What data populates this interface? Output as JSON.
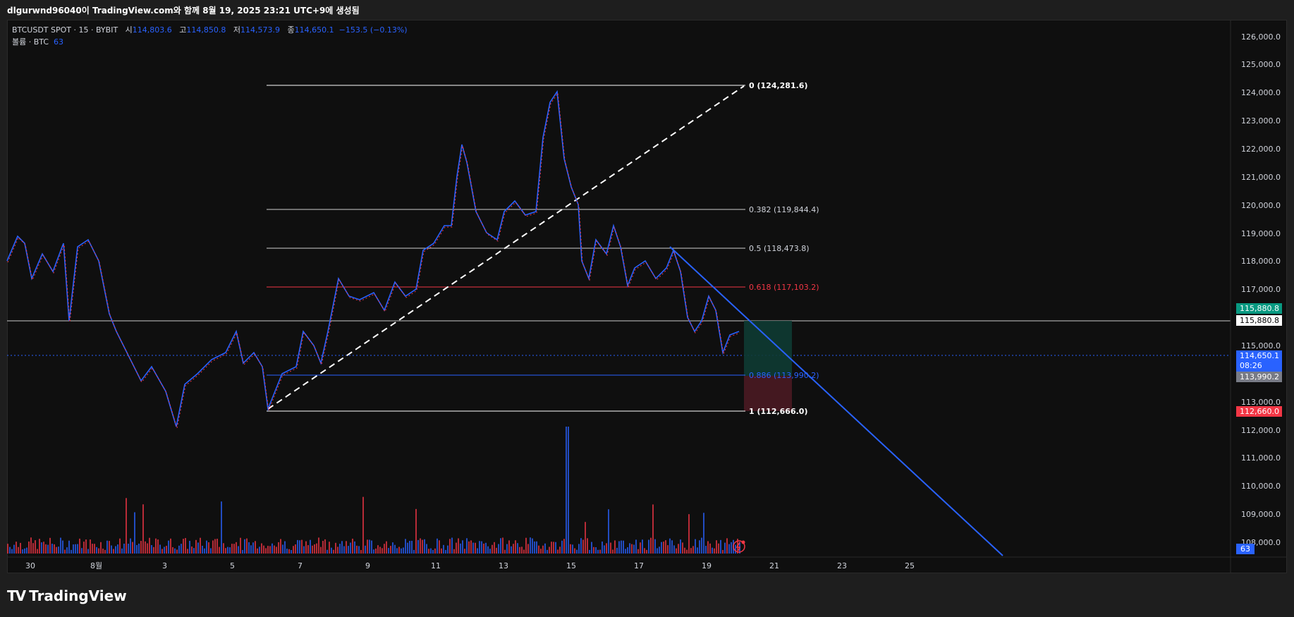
{
  "header": {
    "caption": "dlgurwnd96040이 TradingView.com와 함께 8월 19, 2025 23:21 UTC+9에 생성됨"
  },
  "legend": {
    "symbol": "BTCUSDT SPOT · 15 · BYBIT",
    "open_label": "시",
    "open": "114,803.6",
    "high_label": "고",
    "high": "114,850.8",
    "low_label": "저",
    "low": "114,573.9",
    "close_label": "종",
    "close": "114,650.1",
    "change": "−153.5 (−0.13%)",
    "volume_label": "볼륨 · BTC",
    "volume_value": "63"
  },
  "price_axis": {
    "ticks": [
      "126,000.0",
      "125,000.0",
      "124,000.0",
      "123,000.0",
      "122,000.0",
      "121,000.0",
      "120,000.0",
      "119,000.0",
      "118,000.0",
      "117,000.0",
      "115,000.0",
      "113,000.0",
      "112,000.0",
      "111,000.0",
      "110,000.0",
      "109,000.0",
      "108,000.0"
    ],
    "labels": {
      "target_green": "115,880.8",
      "target_white": "115,880.8",
      "current_price": "114,650.1",
      "countdown": "08:26",
      "entry": "113,990.2",
      "stop": "112,660.0",
      "volume": "63"
    }
  },
  "date_axis": {
    "ticks": [
      "30",
      "8월",
      "3",
      "5",
      "7",
      "9",
      "11",
      "13",
      "15",
      "17",
      "19",
      "21",
      "23",
      "25"
    ]
  },
  "fibonacci": [
    {
      "level": "0 (124,281.6)",
      "color": "#ffffff",
      "bold": true
    },
    {
      "level": "0.382 (119,844.4)",
      "color": "#d1d4dc",
      "bold": false
    },
    {
      "level": "0.5 (118,473.8)",
      "color": "#d1d4dc",
      "bold": false
    },
    {
      "level": "0.618 (117,103.2)",
      "color": "#f23645",
      "bold": false
    },
    {
      "level": "0.886 (113,990.2)",
      "color": "#2962ff",
      "bold": false
    },
    {
      "level": "1 (112,666.0)",
      "color": "#ffffff",
      "bold": true
    }
  ],
  "colors": {
    "up": "#2962ff",
    "down": "#f23645",
    "green": "#089981",
    "background": "#0f0f0f"
  },
  "footer": {
    "logo_mark": "TV",
    "brand": "TradingView"
  }
}
